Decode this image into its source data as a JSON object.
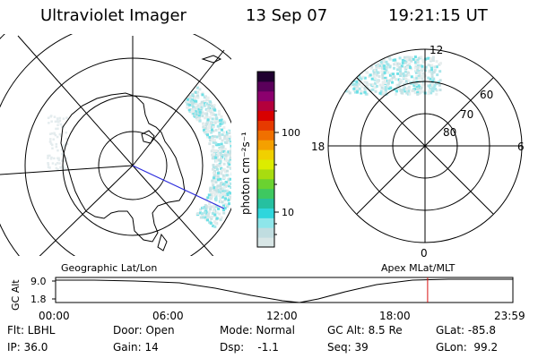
{
  "header": {
    "instrument": "Ultraviolet Imager",
    "date": "13 Sep 07",
    "time": "19:21:15 UT"
  },
  "colorbar": {
    "unit_label": "photon cm⁻²s⁻¹",
    "ticks": [
      {
        "label": "100",
        "value": 100
      },
      {
        "label": "10",
        "value": 10
      }
    ],
    "colors": [
      "#d8e6e6",
      "#c0dde0",
      "#8ee6ea",
      "#2fd6dc",
      "#26c0a0",
      "#3ec860",
      "#6ad230",
      "#a8dc10",
      "#dcec00",
      "#f0d000",
      "#f4a000",
      "#f07000",
      "#e63a00",
      "#d80000",
      "#b4003c",
      "#8c006e",
      "#5a005a",
      "#200030"
    ]
  },
  "left_panel": {
    "title": "Geographic Lat/Lon"
  },
  "right_panel": {
    "title": "Apex MLat/MLT",
    "mlt_labels": {
      "top": "12",
      "left": "18",
      "right": "6",
      "bottom": "0"
    },
    "lat_labels": [
      "60",
      "70",
      "80"
    ]
  },
  "timeline": {
    "y_axis_title": "GC Alt",
    "y_ticks": [
      "9.0",
      "1.8"
    ],
    "x_ticks": [
      "00:00",
      "06:00",
      "12:00",
      "18:00",
      "23:59"
    ],
    "current_time_fraction": 0.8135
  },
  "info": {
    "filter": "Flt: LBHL",
    "ip": "IP: 36.0",
    "door": "Door: Open",
    "gain": "Gain: 14",
    "mode": "Mode: Normal",
    "dsp": "Dsp:    -1.1",
    "gc_alt": "GC Alt: 8.5 Re",
    "seq": "Seq: 39",
    "glat": "GLat: -85.8",
    "glon": "GLon:  99.2"
  }
}
